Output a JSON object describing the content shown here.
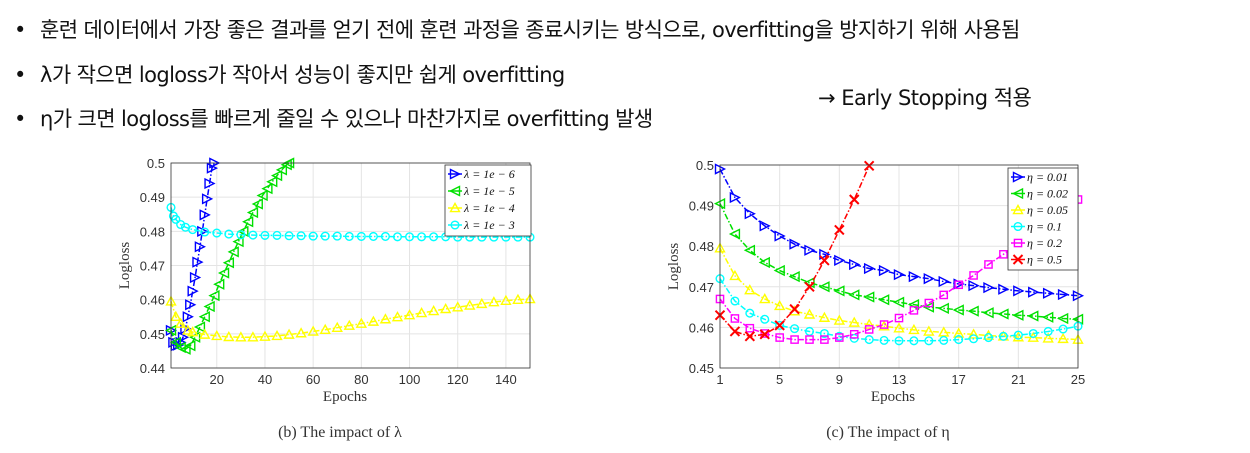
{
  "bullets": [
    "훈련 데이터에서 가장 좋은 결과를 얻기 전에 훈련 과정을 종료시키는 방식으로, overfitting을 방지하기 위해 사용됨",
    "λ가 작으면 logloss가 작아서 성능이 좋지만 쉽게 overfitting",
    "η가 크면 logloss를 빠르게 줄일 수 있으나 마찬가지로 overfitting 발생"
  ],
  "bullet_symbol": "•",
  "note": "→ Early Stopping 적용",
  "chart_data": [
    {
      "type": "line",
      "caption": "(b) The impact of λ",
      "xlabel": "Epochs",
      "ylabel": "Logloss",
      "xlim": [
        1,
        150
      ],
      "ylim": [
        0.44,
        0.5
      ],
      "xticks": [
        20,
        40,
        60,
        80,
        100,
        120,
        140
      ],
      "yticks": [
        0.44,
        0.45,
        0.46,
        0.47,
        0.48,
        0.49,
        0.5
      ],
      "grid": true,
      "legend_position": "top-right",
      "series": [
        {
          "name": "λ = 1e − 6",
          "color": "#0000ff",
          "marker": "triangle-right",
          "x": [
            1,
            2,
            3,
            4,
            5,
            6,
            7,
            8,
            9,
            10,
            11,
            12,
            13,
            14,
            15,
            16,
            17,
            18,
            19
          ],
          "y": [
            0.451,
            0.4475,
            0.4465,
            0.4467,
            0.4475,
            0.449,
            0.4515,
            0.455,
            0.4585,
            0.4625,
            0.4665,
            0.471,
            0.4755,
            0.48,
            0.4848,
            0.4895,
            0.494,
            0.4985,
            0.5
          ]
        },
        {
          "name": "λ = 1e − 5",
          "color": "#00e000",
          "marker": "triangle-left",
          "x": [
            1,
            3,
            5,
            7,
            9,
            11,
            13,
            15,
            17,
            19,
            21,
            23,
            25,
            27,
            29,
            31,
            33,
            35,
            37,
            39,
            41,
            43,
            45,
            47,
            49,
            50
          ],
          "y": [
            0.451,
            0.4475,
            0.446,
            0.4455,
            0.4465,
            0.449,
            0.452,
            0.455,
            0.458,
            0.4612,
            0.4645,
            0.4678,
            0.4708,
            0.474,
            0.477,
            0.48,
            0.4828,
            0.4855,
            0.488,
            0.4905,
            0.4925,
            0.4945,
            0.4963,
            0.498,
            0.4995,
            0.5
          ]
        },
        {
          "name": "λ = 1e − 4",
          "color": "#ffff00",
          "marker": "triangle-up",
          "x": [
            1,
            3,
            5,
            8,
            10,
            15,
            20,
            25,
            30,
            35,
            40,
            45,
            50,
            55,
            60,
            65,
            70,
            75,
            80,
            85,
            90,
            95,
            100,
            105,
            110,
            115,
            120,
            125,
            130,
            135,
            140,
            145,
            150
          ],
          "y": [
            0.4595,
            0.455,
            0.453,
            0.451,
            0.4505,
            0.4498,
            0.4494,
            0.4491,
            0.449,
            0.449,
            0.4492,
            0.4494,
            0.4498,
            0.4502,
            0.4507,
            0.4512,
            0.4518,
            0.4524,
            0.453,
            0.4536,
            0.4543,
            0.4549,
            0.4555,
            0.4561,
            0.4567,
            0.4573,
            0.4578,
            0.4583,
            0.4588,
            0.4593,
            0.4597,
            0.46,
            0.4602
          ]
        },
        {
          "name": "λ = 1e − 3",
          "color": "#00ffff",
          "marker": "circle",
          "x": [
            1,
            2,
            3,
            5,
            7,
            10,
            15,
            20,
            25,
            30,
            35,
            40,
            45,
            50,
            55,
            60,
            65,
            70,
            75,
            80,
            85,
            90,
            95,
            100,
            105,
            110,
            115,
            120,
            125,
            130,
            135,
            140,
            145,
            150
          ],
          "y": [
            0.487,
            0.4845,
            0.4835,
            0.482,
            0.4812,
            0.4805,
            0.4798,
            0.4795,
            0.4792,
            0.479,
            0.4789,
            0.4788,
            0.4788,
            0.4787,
            0.4787,
            0.4786,
            0.4786,
            0.4786,
            0.4785,
            0.4785,
            0.4785,
            0.4785,
            0.4784,
            0.4784,
            0.4784,
            0.4784,
            0.4784,
            0.4783,
            0.4783,
            0.4783,
            0.4783,
            0.4783,
            0.4783,
            0.4783
          ]
        }
      ]
    },
    {
      "type": "line",
      "caption": "(c) The impact of η",
      "xlabel": "Epochs",
      "ylabel": "Logloss",
      "xlim": [
        1,
        25
      ],
      "ylim": [
        0.45,
        0.5
      ],
      "xticks": [
        1,
        5,
        9,
        13,
        17,
        21,
        25
      ],
      "yticks": [
        0.45,
        0.46,
        0.47,
        0.48,
        0.49,
        0.5
      ],
      "grid": true,
      "legend_position": "top-right",
      "series": [
        {
          "name": "η = 0.01",
          "color": "#0000ff",
          "marker": "triangle-right",
          "x": [
            1,
            2,
            3,
            4,
            5,
            6,
            7,
            8,
            9,
            10,
            11,
            12,
            13,
            14,
            15,
            16,
            17,
            18,
            19,
            20,
            21,
            22,
            23,
            24,
            25
          ],
          "y": [
            0.499,
            0.492,
            0.488,
            0.485,
            0.4825,
            0.4805,
            0.479,
            0.478,
            0.4765,
            0.4755,
            0.4745,
            0.474,
            0.473,
            0.4725,
            0.472,
            0.4713,
            0.4707,
            0.4703,
            0.4698,
            0.4694,
            0.469,
            0.4687,
            0.4684,
            0.4681,
            0.4678
          ]
        },
        {
          "name": "η = 0.02",
          "color": "#00e000",
          "marker": "triangle-left",
          "x": [
            1,
            2,
            3,
            4,
            5,
            6,
            7,
            8,
            9,
            10,
            11,
            12,
            13,
            14,
            15,
            16,
            17,
            18,
            19,
            20,
            21,
            22,
            23,
            24,
            25
          ],
          "y": [
            0.4905,
            0.483,
            0.479,
            0.476,
            0.474,
            0.4725,
            0.471,
            0.47,
            0.469,
            0.468,
            0.4675,
            0.4668,
            0.4662,
            0.4656,
            0.465,
            0.4647,
            0.4643,
            0.464,
            0.4636,
            0.4633,
            0.463,
            0.4628,
            0.4625,
            0.4622,
            0.462
          ]
        },
        {
          "name": "η = 0.05",
          "color": "#ffff00",
          "marker": "triangle-up",
          "x": [
            1,
            2,
            3,
            4,
            5,
            6,
            7,
            8,
            9,
            10,
            11,
            12,
            13,
            14,
            15,
            16,
            17,
            18,
            19,
            20,
            21,
            22,
            23,
            24,
            25
          ],
          "y": [
            0.4795,
            0.4727,
            0.4692,
            0.467,
            0.4653,
            0.464,
            0.4632,
            0.4624,
            0.4617,
            0.4612,
            0.4607,
            0.4603,
            0.4598,
            0.4594,
            0.459,
            0.4588,
            0.4585,
            0.4583,
            0.458,
            0.4578,
            0.4576,
            0.4575,
            0.4573,
            0.4572,
            0.457
          ]
        },
        {
          "name": "η = 0.1",
          "color": "#00ffff",
          "marker": "circle",
          "x": [
            1,
            2,
            3,
            4,
            5,
            6,
            7,
            8,
            9,
            10,
            11,
            12,
            13,
            14,
            15,
            16,
            17,
            18,
            19,
            20,
            21,
            22,
            23,
            24,
            25
          ],
          "y": [
            0.472,
            0.4665,
            0.4635,
            0.462,
            0.4605,
            0.4597,
            0.459,
            0.4585,
            0.4578,
            0.4573,
            0.457,
            0.4568,
            0.4567,
            0.4567,
            0.4567,
            0.4568,
            0.457,
            0.4572,
            0.4575,
            0.4578,
            0.4581,
            0.4585,
            0.459,
            0.4596,
            0.4603
          ]
        },
        {
          "name": "η = 0.2",
          "color": "#ff00ff",
          "marker": "square",
          "x": [
            1,
            2,
            3,
            4,
            5,
            6,
            7,
            8,
            9,
            10,
            11,
            12,
            13,
            14,
            15,
            16,
            17,
            18,
            19,
            20,
            21,
            22,
            23,
            24,
            25
          ],
          "y": [
            0.467,
            0.4622,
            0.4598,
            0.4585,
            0.4575,
            0.457,
            0.457,
            0.457,
            0.4575,
            0.4583,
            0.4595,
            0.4607,
            0.4623,
            0.4642,
            0.466,
            0.468,
            0.4705,
            0.4728,
            0.4755,
            0.478,
            0.4805,
            0.483,
            0.4858,
            0.4886,
            0.4915
          ]
        },
        {
          "name": "η = 0.5",
          "color": "#ff0000",
          "marker": "x",
          "x": [
            1,
            2,
            3,
            4,
            5,
            6,
            7,
            8,
            9,
            10,
            11
          ],
          "y": [
            0.463,
            0.459,
            0.4578,
            0.4583,
            0.4605,
            0.4645,
            0.47,
            0.4765,
            0.484,
            0.4915,
            0.4998
          ]
        }
      ]
    }
  ]
}
